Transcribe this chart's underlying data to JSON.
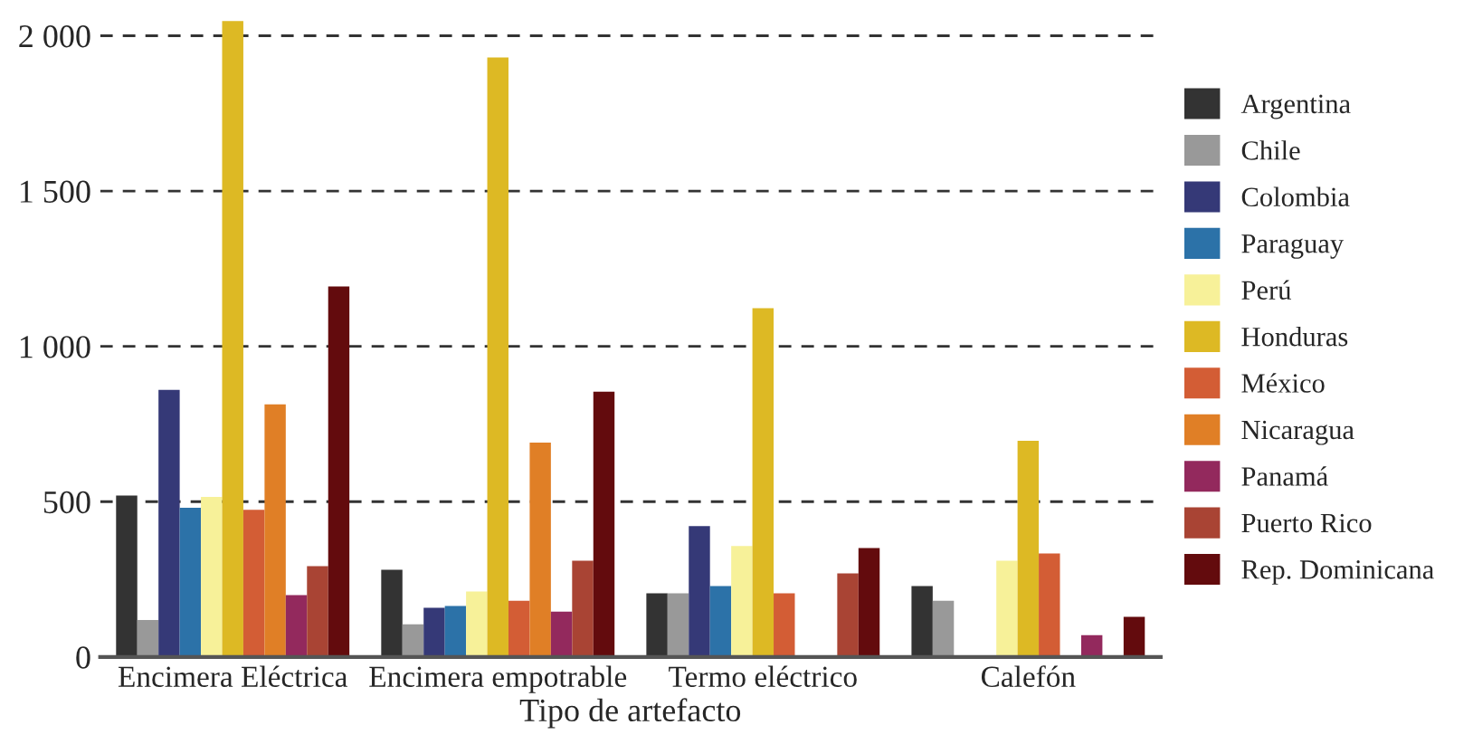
{
  "chart_data": {
    "type": "bar",
    "xlabel": "Tipo de artefacto",
    "categories": [
      "Encimera Eléctrica",
      "Encimera empotrable",
      "Termo eléctrico",
      "Calefón"
    ],
    "series": [
      {
        "name": "Argentina",
        "color": "#333333",
        "values": [
          520,
          281,
          205,
          228
        ]
      },
      {
        "name": "Chile",
        "color": "#999999",
        "values": [
          119,
          105,
          205,
          181
        ]
      },
      {
        "name": "Colombia",
        "color": "#353977",
        "values": [
          860,
          158,
          421,
          null
        ]
      },
      {
        "name": "Paraguay",
        "color": "#2c72a8",
        "values": [
          480,
          164,
          228,
          null
        ]
      },
      {
        "name": "Perú",
        "color": "#f7f199",
        "values": [
          515,
          211,
          357,
          310
        ]
      },
      {
        "name": "Honduras",
        "color": "#ddb924",
        "values": [
          2047,
          1930,
          1123,
          696
        ]
      },
      {
        "name": "México",
        "color": "#d35d35",
        "values": [
          474,
          181,
          205,
          333
        ]
      },
      {
        "name": "Nicaragua",
        "color": "#e07f26",
        "values": [
          813,
          690,
          null,
          null
        ]
      },
      {
        "name": "Panamá",
        "color": "#93295d",
        "values": [
          199,
          146,
          null,
          70
        ]
      },
      {
        "name": "Puerto Rico",
        "color": "#a94434",
        "values": [
          292,
          310,
          269,
          null
        ]
      },
      {
        "name": "Rep. Dominicana",
        "color": "#630b0d",
        "values": [
          1193,
          854,
          351,
          129
        ]
      }
    ],
    "ylim": [
      0,
      2060
    ],
    "yticks": [
      {
        "value": 0,
        "label": "0"
      },
      {
        "value": 500,
        "label": "500"
      },
      {
        "value": 1000,
        "label": "1 000"
      },
      {
        "value": 1500,
        "label": "1 500"
      },
      {
        "value": 2000,
        "label": "2 000"
      }
    ],
    "grid": "y",
    "legend": "right"
  }
}
